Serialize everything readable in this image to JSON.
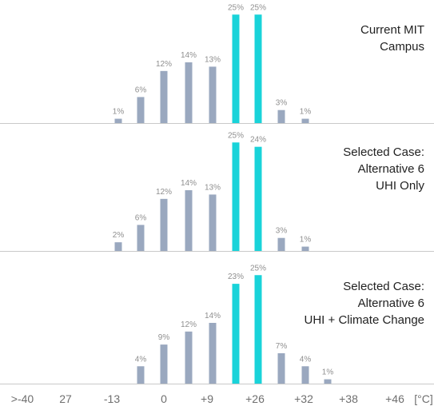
{
  "colors": {
    "bar": "#9aa8bf",
    "highlight": "#19d3d9",
    "label": "#8f8f8f",
    "axis": "#c9c9c9",
    "title": "#222222"
  },
  "x_axis": {
    "ticks": [
      ">-40",
      "27",
      "-13",
      "0",
      "+9",
      "+26",
      "+32",
      "+38",
      "+46",
      "[°C]"
    ]
  },
  "chart_data": [
    {
      "type": "bar",
      "title_lines": [
        "Current MIT",
        "Campus"
      ],
      "values": [
        1,
        6,
        12,
        14,
        13,
        25,
        25,
        3,
        1
      ],
      "labels": [
        "1%",
        "6%",
        "12%",
        "14%",
        "13%",
        "25%",
        "25%",
        "3%",
        "1%"
      ],
      "highlight": [
        false,
        false,
        false,
        false,
        false,
        true,
        true,
        false,
        false
      ]
    },
    {
      "type": "bar",
      "title_lines": [
        "Selected Case:",
        "Alternative 6",
        "UHI Only"
      ],
      "values": [
        2,
        6,
        12,
        14,
        13,
        25,
        24,
        3,
        1
      ],
      "labels": [
        "2%",
        "6%",
        "12%",
        "14%",
        "13%",
        "25%",
        "24%",
        "3%",
        "1%"
      ],
      "highlight": [
        false,
        false,
        false,
        false,
        false,
        true,
        true,
        false,
        false
      ]
    },
    {
      "type": "bar",
      "title_lines": [
        "Selected Case:",
        "Alternative 6",
        "UHI + Climate Change"
      ],
      "values": [
        4,
        9,
        12,
        14,
        23,
        25,
        7,
        4,
        1
      ],
      "labels": [
        "4%",
        "9%",
        "12%",
        "14%",
        "23%",
        "25%",
        "7%",
        "4%",
        "1%"
      ],
      "highlight": [
        false,
        false,
        false,
        false,
        true,
        true,
        false,
        false,
        false
      ]
    }
  ]
}
